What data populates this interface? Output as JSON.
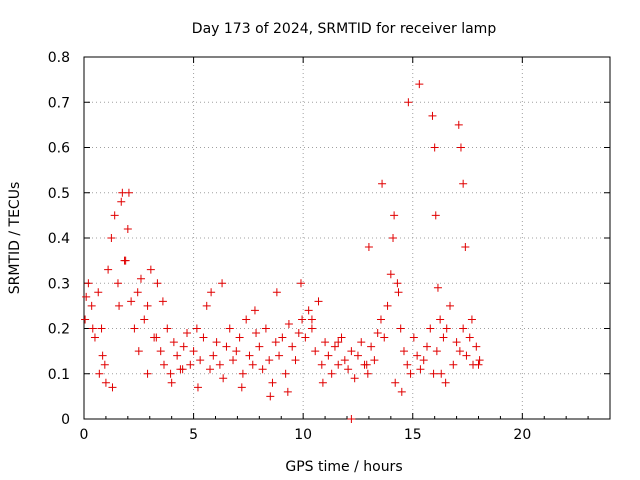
{
  "chart_data": {
    "type": "scatter",
    "title": "Day 173 of 2024, SRMTID for receiver lamp",
    "xlabel": "GPS time / hours",
    "ylabel": "SRMTID / TECUs",
    "xlim": [
      0,
      24
    ],
    "ylim": [
      0,
      0.8
    ],
    "xticks": [
      0,
      5,
      10,
      15,
      20
    ],
    "xtick_labels": [
      "0",
      "5",
      "10",
      "15",
      "20"
    ],
    "yticks": [
      0,
      0.1,
      0.2,
      0.3,
      0.4,
      0.5,
      0.6,
      0.7,
      0.8
    ],
    "ytick_labels": [
      "0",
      "0.1",
      "0.2",
      "0.3",
      "0.4",
      "0.5",
      "0.6",
      "0.7",
      "0.8"
    ],
    "grid": true,
    "marker": "+",
    "series": [
      {
        "name": "SRMTID",
        "color": "#e00000",
        "x": [
          0.05,
          0.2,
          0.35,
          0.5,
          0.65,
          0.8,
          0.95,
          1.1,
          1.25,
          1.4,
          1.55,
          1.7,
          1.85,
          2.0,
          2.15,
          2.3,
          2.45,
          2.6,
          2.75,
          2.9,
          3.05,
          3.2,
          3.35,
          3.5,
          3.65,
          3.8,
          3.95,
          4.1,
          4.25,
          4.4,
          4.55,
          4.7,
          4.85,
          5.0,
          5.15,
          5.3,
          5.45,
          5.6,
          5.75,
          5.9,
          6.05,
          6.2,
          6.35,
          6.5,
          6.65,
          6.8,
          6.95,
          7.1,
          7.25,
          7.4,
          7.55,
          7.7,
          7.85,
          8.0,
          8.15,
          8.3,
          8.45,
          8.6,
          8.75,
          8.9,
          9.05,
          9.2,
          9.35,
          9.5,
          9.65,
          9.8,
          9.95,
          10.1,
          10.25,
          10.4,
          10.55,
          10.7,
          10.85,
          11.0,
          11.15,
          11.3,
          11.45,
          11.6,
          11.75,
          11.9,
          12.05,
          12.2,
          12.35,
          12.5,
          12.65,
          12.8,
          12.95,
          13.1,
          13.25,
          13.4,
          13.55,
          13.7,
          13.85,
          14.0,
          14.15,
          14.3,
          14.45,
          14.6,
          14.75,
          14.9,
          15.05,
          15.2,
          15.35,
          15.5,
          15.65,
          15.8,
          15.95,
          16.1,
          16.25,
          16.4,
          16.55,
          16.7,
          16.85,
          17.0,
          17.15,
          17.3,
          17.45,
          17.6,
          17.75,
          17.9,
          18.05,
          0.1,
          0.4,
          0.7,
          0.85,
          1.0,
          1.3,
          1.6,
          1.75,
          1.9,
          2.05,
          2.5,
          2.9,
          3.3,
          3.6,
          4.0,
          4.5,
          5.2,
          5.8,
          6.3,
          7.2,
          7.8,
          8.5,
          8.8,
          9.3,
          9.9,
          10.4,
          10.9,
          11.6,
          12.2,
          12.9,
          13.0,
          13.6,
          14.1,
          14.2,
          14.35,
          14.5,
          14.8,
          15.3,
          15.9,
          16.0,
          16.05,
          16.15,
          16.3,
          16.5,
          17.1,
          17.2,
          17.3,
          17.4,
          17.7,
          18.0
        ],
        "y": [
          0.22,
          0.3,
          0.25,
          0.18,
          0.28,
          0.2,
          0.12,
          0.33,
          0.4,
          0.45,
          0.3,
          0.48,
          0.35,
          0.42,
          0.26,
          0.2,
          0.28,
          0.31,
          0.22,
          0.25,
          0.33,
          0.18,
          0.3,
          0.15,
          0.12,
          0.2,
          0.1,
          0.17,
          0.14,
          0.11,
          0.16,
          0.19,
          0.12,
          0.15,
          0.2,
          0.13,
          0.18,
          0.25,
          0.11,
          0.14,
          0.17,
          0.12,
          0.09,
          0.16,
          0.2,
          0.13,
          0.15,
          0.18,
          0.1,
          0.22,
          0.14,
          0.12,
          0.19,
          0.16,
          0.11,
          0.2,
          0.13,
          0.08,
          0.17,
          0.14,
          0.18,
          0.1,
          0.21,
          0.16,
          0.13,
          0.19,
          0.22,
          0.18,
          0.24,
          0.2,
          0.15,
          0.26,
          0.12,
          0.17,
          0.14,
          0.1,
          0.16,
          0.12,
          0.18,
          0.13,
          0.11,
          0.15,
          0.09,
          0.14,
          0.17,
          0.12,
          0.1,
          0.16,
          0.13,
          0.19,
          0.22,
          0.18,
          0.25,
          0.32,
          0.45,
          0.3,
          0.2,
          0.15,
          0.12,
          0.1,
          0.18,
          0.14,
          0.11,
          0.13,
          0.16,
          0.2,
          0.1,
          0.15,
          0.22,
          0.18,
          0.2,
          0.25,
          0.12,
          0.17,
          0.15,
          0.2,
          0.14,
          0.18,
          0.12,
          0.16,
          0.13,
          0.27,
          0.2,
          0.1,
          0.14,
          0.08,
          0.07,
          0.25,
          0.5,
          0.35,
          0.5,
          0.15,
          0.1,
          0.18,
          0.26,
          0.08,
          0.11,
          0.07,
          0.28,
          0.3,
          0.07,
          0.24,
          0.05,
          0.28,
          0.06,
          0.3,
          0.22,
          0.08,
          0.17,
          0.0,
          0.12,
          0.38,
          0.52,
          0.4,
          0.08,
          0.28,
          0.06,
          0.7,
          0.74,
          0.67,
          0.6,
          0.45,
          0.29,
          0.1,
          0.08,
          0.65,
          0.6,
          0.52,
          0.38,
          0.22,
          0.12
        ]
      }
    ]
  }
}
